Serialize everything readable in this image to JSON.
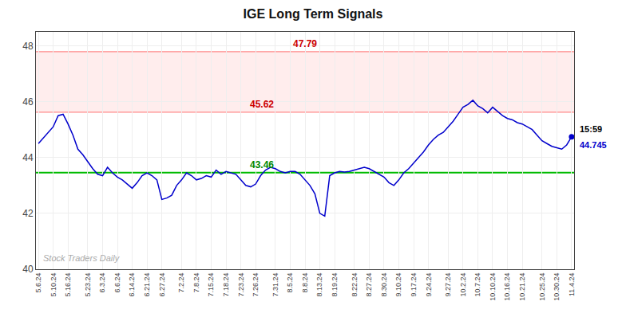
{
  "chart_data": {
    "type": "line",
    "title": "IGE Long Term Signals",
    "categories": [
      "5.6.24",
      null,
      null,
      "5.10.24",
      null,
      null,
      "5.16.24",
      null,
      null,
      null,
      "5.23.24",
      null,
      null,
      "6.3.24",
      null,
      null,
      "6.6.24",
      null,
      null,
      "6.14.24",
      null,
      null,
      "6.21.24",
      null,
      null,
      "6.27.24",
      null,
      null,
      null,
      "7.2.24",
      null,
      null,
      "7.8.24",
      null,
      null,
      "7.15.24",
      null,
      null,
      "7.18.24",
      null,
      null,
      "7.23.24",
      null,
      null,
      "7.26.24",
      null,
      null,
      null,
      "7.31.24",
      null,
      null,
      "8.5.24",
      null,
      null,
      "8.8.24",
      null,
      null,
      "8.13.24",
      null,
      null,
      "8.19.24",
      null,
      null,
      null,
      "8.22.24",
      null,
      null,
      "8.27.24",
      null,
      null,
      "8.30.24",
      null,
      null,
      "9.10.24",
      null,
      null,
      "9.17.24",
      null,
      null,
      "9.24.24",
      null,
      null,
      null,
      "9.27.24",
      null,
      null,
      "10.2.24",
      null,
      null,
      "10.7.24",
      null,
      null,
      "10.10.24",
      null,
      null,
      "10.16.24",
      null,
      null,
      "10.21.24",
      null,
      null,
      null,
      "10.25.24",
      null,
      null,
      "10.30.24",
      null,
      null,
      "11.4.24"
    ],
    "values": [
      44.5,
      44.7,
      44.9,
      45.1,
      45.5,
      45.55,
      45.2,
      44.8,
      44.3,
      44.1,
      43.85,
      43.6,
      43.4,
      43.35,
      43.65,
      43.45,
      43.3,
      43.2,
      43.05,
      42.9,
      43.1,
      43.35,
      43.45,
      43.35,
      43.2,
      42.5,
      42.55,
      42.65,
      43.0,
      43.2,
      43.45,
      43.35,
      43.2,
      43.25,
      43.35,
      43.3,
      43.55,
      43.4,
      43.5,
      43.45,
      43.4,
      43.2,
      43.0,
      42.95,
      43.05,
      43.35,
      43.55,
      43.65,
      43.6,
      43.5,
      43.45,
      43.5,
      43.5,
      43.4,
      43.2,
      43.0,
      42.7,
      42.0,
      41.9,
      43.35,
      43.45,
      43.5,
      43.48,
      43.5,
      43.55,
      43.6,
      43.65,
      43.6,
      43.5,
      43.4,
      43.3,
      43.1,
      43.0,
      43.2,
      43.45,
      43.6,
      43.8,
      44.0,
      44.2,
      44.45,
      44.65,
      44.8,
      44.9,
      45.1,
      45.3,
      45.55,
      45.8,
      45.9,
      46.05,
      45.85,
      45.75,
      45.6,
      45.8,
      45.65,
      45.5,
      45.4,
      45.35,
      45.25,
      45.2,
      45.1,
      45.0,
      44.8,
      44.6,
      44.5,
      44.4,
      44.35,
      44.3,
      44.45,
      44.745
    ],
    "color": "#0000cc",
    "ylim": [
      40,
      48.5
    ],
    "yticks": [
      40,
      42,
      44,
      46,
      48
    ],
    "grid": true,
    "hlines": [
      {
        "value": 47.79,
        "label": "47.79",
        "color": "#ff8888",
        "label_color": "#cc0000"
      },
      {
        "value": 45.62,
        "label": "45.62",
        "color": "#ff8888",
        "label_color": "#cc0000"
      },
      {
        "value": 43.46,
        "label": "43.46",
        "color": "#00bb00",
        "label_color": "#008800"
      }
    ],
    "band": {
      "from": 45.62,
      "to": 47.79,
      "color": "#ff8888"
    },
    "end_labels": [
      {
        "text": "15:59",
        "color": "#000000"
      },
      {
        "text": "44.745",
        "color": "#0000cc"
      }
    ],
    "watermark": {
      "text": "Stock Traders Daily",
      "color": "#aaaaaa"
    }
  }
}
